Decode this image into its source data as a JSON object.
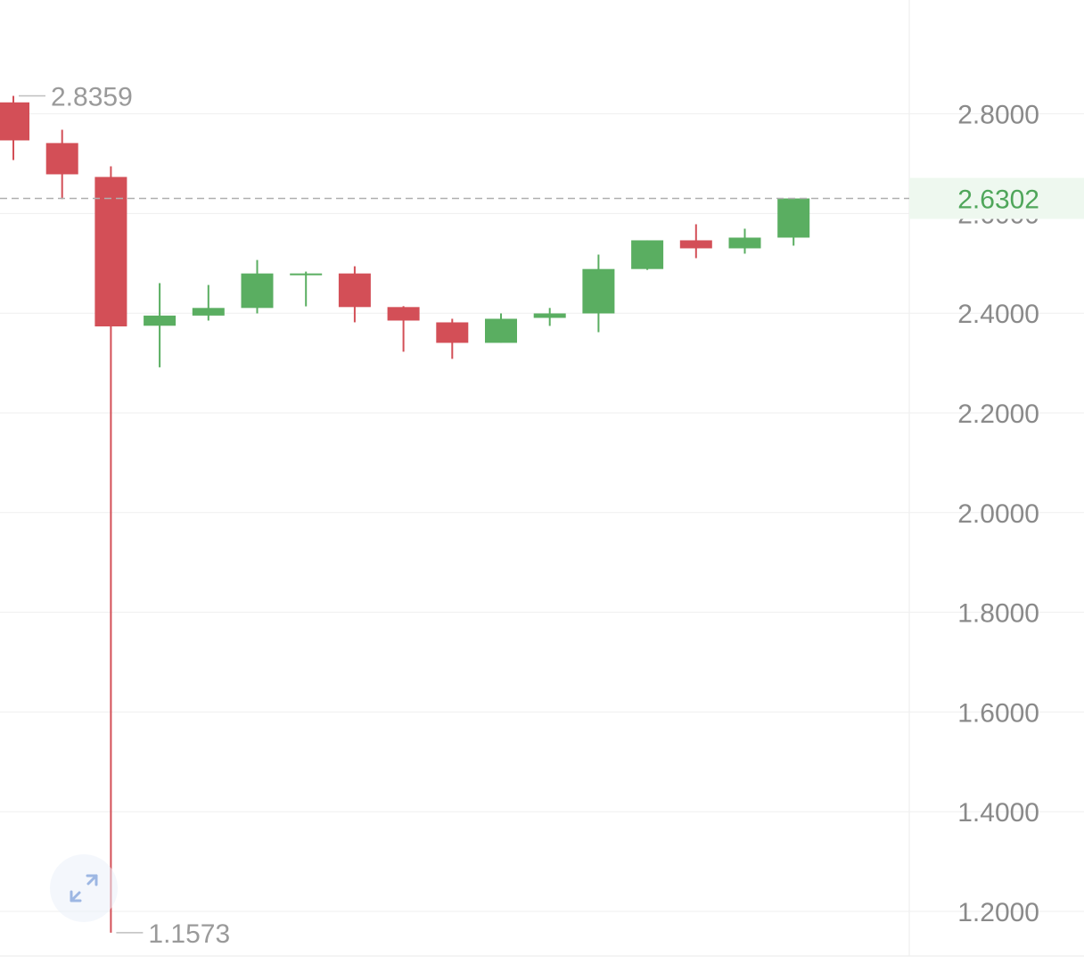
{
  "colors": {
    "up": "#5AAE61",
    "down": "#D34F57",
    "grid": "#EFEFEF",
    "tick_text": "#8A8A8A",
    "price_line": "#AFAFAF",
    "price_label_bg": "#EEF8EF",
    "price_label_text": "#4FA65A",
    "expand_icon": "#9DB7E3"
  },
  "icons": {
    "expand": "expand-arrows-icon"
  },
  "chart_data": {
    "type": "candlestick",
    "y_axis": {
      "position": "right",
      "ticks": [
        1.2,
        1.4,
        1.6,
        1.8,
        2.0,
        2.2,
        2.4,
        2.6,
        2.8
      ],
      "tick_labels": [
        "1.2000",
        "1.4000",
        "1.6000",
        "1.8000",
        "2.0000",
        "2.2000",
        "2.4000",
        "2.6000",
        "2.8000"
      ]
    },
    "grid": true,
    "candles": [
      {
        "open": 2.8229,
        "high": 2.8359,
        "low": 2.7072,
        "close": 2.7466
      },
      {
        "open": 2.7413,
        "high": 2.768,
        "low": 2.6288,
        "close": 2.6786
      },
      {
        "open": 2.6733,
        "high": 2.6947,
        "low": 1.1573,
        "close": 2.3735
      },
      {
        "open": 2.3748,
        "high": 2.4602,
        "low": 2.2914,
        "close": 2.3952
      },
      {
        "open": 2.3952,
        "high": 2.4566,
        "low": 2.3852,
        "close": 2.4105
      },
      {
        "open": 2.4105,
        "high": 2.5067,
        "low": 2.3995,
        "close": 2.4797
      },
      {
        "open": 2.4761,
        "high": 2.4834,
        "low": 2.4137,
        "close": 2.4797
      },
      {
        "open": 2.4797,
        "high": 2.4941,
        "low": 2.3817,
        "close": 2.4123
      },
      {
        "open": 2.4123,
        "high": 2.4141,
        "low": 2.3227,
        "close": 2.3852
      },
      {
        "open": 2.3816,
        "high": 2.3888,
        "low": 2.3084,
        "close": 2.3405
      },
      {
        "open": 2.3405,
        "high": 2.3995,
        "low": 2.3405,
        "close": 2.3888
      },
      {
        "open": 2.3906,
        "high": 2.4105,
        "low": 2.3745,
        "close": 2.3995
      },
      {
        "open": 2.3995,
        "high": 2.5175,
        "low": 2.362,
        "close": 2.4886
      },
      {
        "open": 2.4886,
        "high": 2.5462,
        "low": 2.4868,
        "close": 2.5462
      },
      {
        "open": 2.5462,
        "high": 2.5784,
        "low": 2.5104,
        "close": 2.5301
      },
      {
        "open": 2.5301,
        "high": 2.5695,
        "low": 2.5194,
        "close": 2.5516
      },
      {
        "open": 2.5516,
        "high": 2.6302,
        "low": 2.5355,
        "close": 2.6302
      }
    ],
    "period_high": {
      "value": 2.8359,
      "label": "2.8359"
    },
    "period_low": {
      "value": 1.1573,
      "label": "1.1573"
    },
    "last_price": {
      "value": 2.6302,
      "label": "2.6302"
    }
  }
}
